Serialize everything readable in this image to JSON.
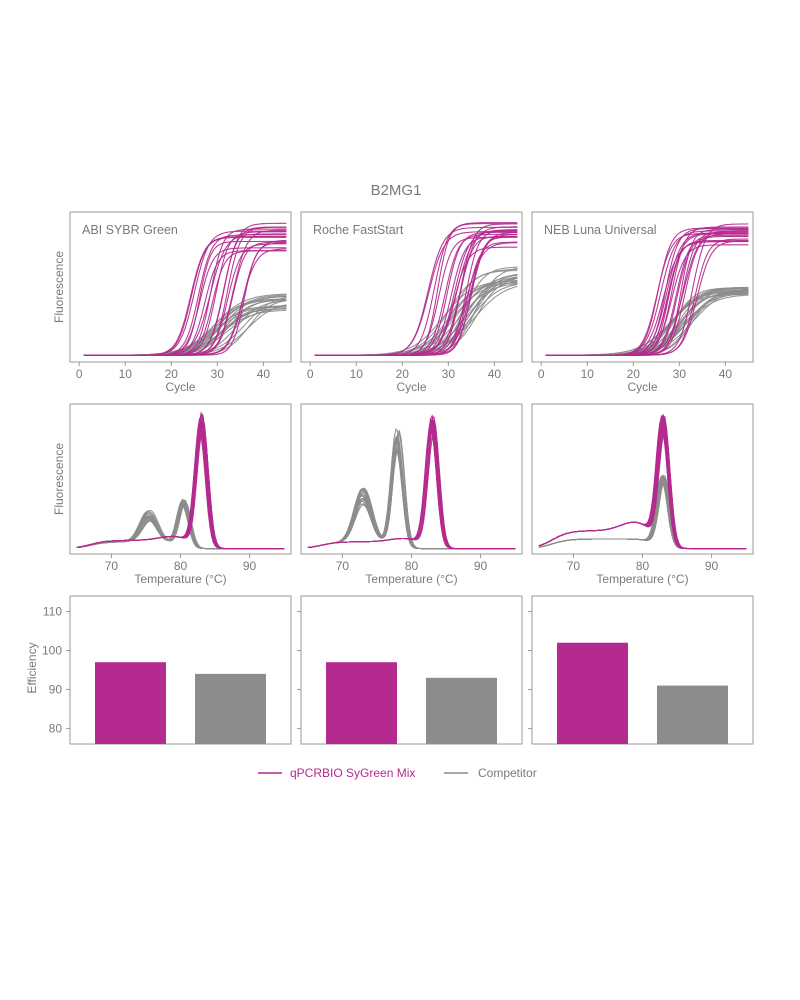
{
  "title": "B2MG1",
  "colors": {
    "sygreen": "#b42a8e",
    "competitor": "#8c8c8c",
    "axis": "#9a9a9a",
    "text": "#7a7a7a"
  },
  "legend": {
    "sygreen_label": "qPCRBIO SyGreen Mix",
    "competitor_label": "Competitor"
  },
  "chart_data": [
    {
      "type": "line",
      "row": "amplification",
      "title": "ABI SYBR Green",
      "xlabel": "Cycle",
      "ylabel": "Fluorescence",
      "xlim": [
        -2,
        46
      ],
      "xticks": [
        0,
        10,
        20,
        30,
        40
      ],
      "series": [
        {
          "name": "qPCRBIO SyGreen Mix",
          "replicates": 20,
          "plateau_range": [
            0.74,
            0.96
          ],
          "ct_range": [
            24,
            36
          ]
        },
        {
          "name": "Competitor",
          "replicates": 20,
          "plateau_range": [
            0.32,
            0.45
          ],
          "ct_range": [
            29,
            37
          ]
        }
      ]
    },
    {
      "type": "line",
      "row": "amplification",
      "title": "Roche FastStart",
      "xlabel": "Cycle",
      "ylabel": "",
      "xlim": [
        -2,
        46
      ],
      "xticks": [
        0,
        10,
        20,
        30,
        40
      ],
      "series": [
        {
          "name": "qPCRBIO SyGreen Mix",
          "replicates": 20,
          "plateau_range": [
            0.78,
            0.97
          ],
          "ct_range": [
            25,
            37
          ]
        },
        {
          "name": "Competitor",
          "replicates": 20,
          "plateau_range": [
            0.52,
            0.66
          ],
          "ct_range": [
            28,
            37
          ]
        }
      ]
    },
    {
      "type": "line",
      "row": "amplification",
      "title": "NEB Luna Universal",
      "xlabel": "Cycle",
      "ylabel": "",
      "xlim": [
        -2,
        46
      ],
      "xticks": [
        0,
        10,
        20,
        30,
        40
      ],
      "series": [
        {
          "name": "qPCRBIO SyGreen Mix",
          "replicates": 20,
          "plateau_range": [
            0.8,
            0.97
          ],
          "ct_range": [
            25,
            34
          ]
        },
        {
          "name": "Competitor",
          "replicates": 20,
          "plateau_range": [
            0.44,
            0.5
          ],
          "ct_range": [
            27,
            33
          ]
        }
      ]
    },
    {
      "type": "line",
      "row": "melt",
      "xlabel": "Temperature (°C)",
      "ylabel": "Fluorescence",
      "xlim": [
        64,
        96
      ],
      "xticks": [
        70,
        80,
        90
      ],
      "series": [
        {
          "name": "qPCRBIO SyGreen Mix",
          "replicates": 20,
          "peak_temp": 83,
          "peak_height_range": [
            0.82,
            0.97
          ],
          "baseline": 0.06
        },
        {
          "name": "Competitor",
          "replicates": 20,
          "peak_temp": 80.5,
          "peak_height": 0.32,
          "shoulder_temp": 75.5,
          "shoulder_height": 0.2
        }
      ]
    },
    {
      "type": "line",
      "row": "melt",
      "xlabel": "Temperature (°C)",
      "ylabel": "",
      "xlim": [
        64,
        96
      ],
      "xticks": [
        70,
        80,
        90
      ],
      "series": [
        {
          "name": "qPCRBIO SyGreen Mix",
          "replicates": 20,
          "peak_temp": 83,
          "peak_height_range": [
            0.8,
            0.95
          ],
          "baseline": 0.05
        },
        {
          "name": "Competitor",
          "replicates": 20,
          "peak_temp": 78,
          "peak_height_range": [
            0.68,
            0.86
          ],
          "shoulder_temp": 73,
          "shoulder_height": 0.34
        }
      ]
    },
    {
      "type": "line",
      "row": "melt",
      "xlabel": "Temperature (°C)",
      "ylabel": "",
      "xlim": [
        64,
        96
      ],
      "xticks": [
        70,
        80,
        90
      ],
      "series": [
        {
          "name": "qPCRBIO SyGreen Mix",
          "replicates": 20,
          "peak_temp": 83,
          "peak_height_range": [
            0.8,
            0.93
          ],
          "baseline": 0.13
        },
        {
          "name": "Competitor",
          "replicates": 20,
          "peak_temp": 83,
          "peak_height_range": [
            0.45,
            0.52
          ],
          "baseline": 0.07
        }
      ]
    },
    {
      "type": "bar",
      "row": "efficiency",
      "ylabel": "Efficiency",
      "ylim": [
        76,
        114
      ],
      "yticks": [
        80,
        90,
        100,
        110
      ],
      "categories": [
        "qPCRBIO SyGreen Mix",
        "Competitor"
      ],
      "values": [
        97,
        94
      ]
    },
    {
      "type": "bar",
      "row": "efficiency",
      "ylabel": "",
      "ylim": [
        76,
        114
      ],
      "yticks": [
        80,
        90,
        100,
        110
      ],
      "categories": [
        "qPCRBIO SyGreen Mix",
        "Competitor"
      ],
      "values": [
        97,
        93
      ]
    },
    {
      "type": "bar",
      "row": "efficiency",
      "ylabel": "",
      "ylim": [
        76,
        114
      ],
      "yticks": [
        80,
        90,
        100,
        110
      ],
      "categories": [
        "qPCRBIO SyGreen Mix",
        "Competitor"
      ],
      "values": [
        102,
        91
      ]
    }
  ]
}
